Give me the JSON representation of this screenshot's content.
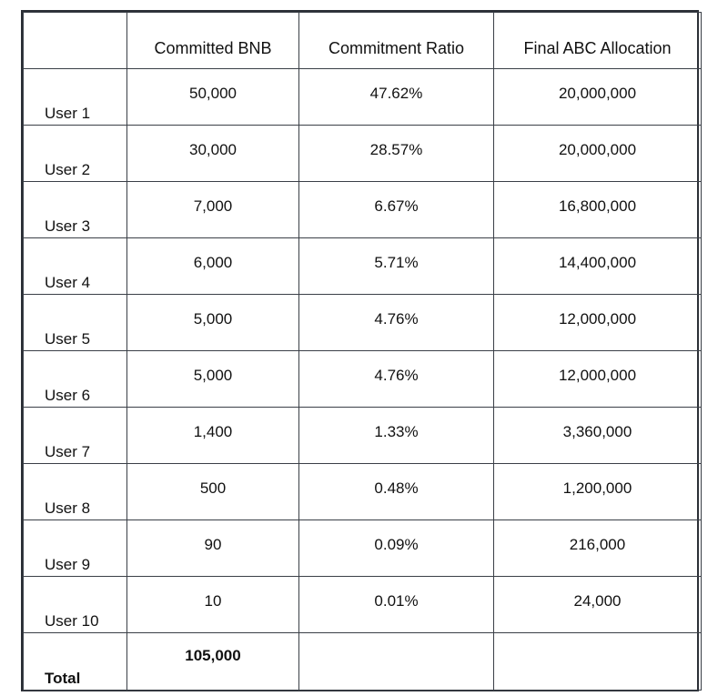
{
  "table": {
    "headers": [
      "",
      "Committed BNB",
      "Commitment Ratio",
      "Final ABC Allocation"
    ],
    "rows": [
      {
        "user": "User 1",
        "committed_bnb": "50,000",
        "commitment_ratio": "47.62%",
        "final_allocation": "20,000,000"
      },
      {
        "user": "User 2",
        "committed_bnb": "30,000",
        "commitment_ratio": "28.57%",
        "final_allocation": "20,000,000"
      },
      {
        "user": "User 3",
        "committed_bnb": "7,000",
        "commitment_ratio": "6.67%",
        "final_allocation": "16,800,000"
      },
      {
        "user": "User 4",
        "committed_bnb": "6,000",
        "commitment_ratio": "5.71%",
        "final_allocation": "14,400,000"
      },
      {
        "user": "User 5",
        "committed_bnb": "5,000",
        "commitment_ratio": "4.76%",
        "final_allocation": "12,000,000"
      },
      {
        "user": "User 6",
        "committed_bnb": "5,000",
        "commitment_ratio": "4.76%",
        "final_allocation": "12,000,000"
      },
      {
        "user": "User 7",
        "committed_bnb": "1,400",
        "commitment_ratio": "1.33%",
        "final_allocation": "3,360,000"
      },
      {
        "user": "User 8",
        "committed_bnb": "500",
        "commitment_ratio": "0.48%",
        "final_allocation": "1,200,000"
      },
      {
        "user": "User 9",
        "committed_bnb": "90",
        "commitment_ratio": "0.09%",
        "final_allocation": "216,000"
      },
      {
        "user": "User 10",
        "committed_bnb": "10",
        "commitment_ratio": "0.01%",
        "final_allocation": "24,000"
      }
    ],
    "total": {
      "label": "Total",
      "committed_bnb": "105,000",
      "commitment_ratio": "",
      "final_allocation": ""
    }
  }
}
